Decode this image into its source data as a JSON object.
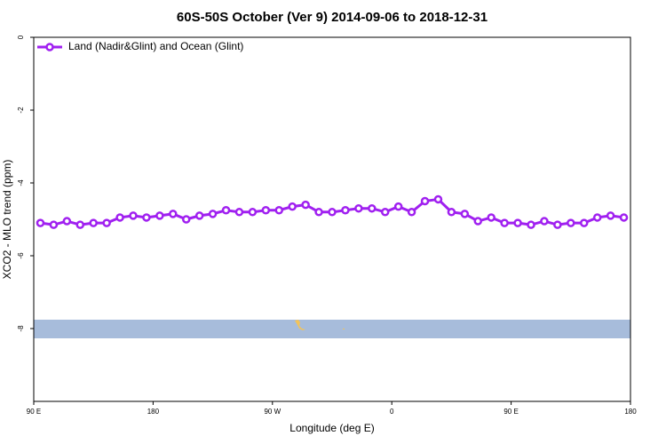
{
  "chart_data": {
    "type": "line",
    "title": "60S-50S October (Ver 9)   2014-09-06 to 2018-12-31",
    "x_label": "Longitude (deg E)",
    "y_label": "XCO2 - MLO trend (ppm)",
    "x": [
      95,
      105,
      115,
      125,
      135,
      145,
      155,
      165,
      175,
      185,
      195,
      205,
      215,
      225,
      235,
      245,
      255,
      265,
      275,
      285,
      295,
      305,
      315,
      325,
      335,
      345,
      355,
      365,
      375,
      385,
      395,
      405,
      415,
      425,
      435,
      445,
      455,
      465,
      475,
      485,
      495,
      505,
      515,
      525,
      535
    ],
    "series": [
      {
        "name": "Land (Nadir&Glint) and Ocean (Glint)",
        "color": "#a020f0",
        "values": [
          -5.1,
          -5.15,
          -5.05,
          -5.15,
          -5.1,
          -5.1,
          -4.95,
          -4.9,
          -4.95,
          -4.9,
          -4.85,
          -5.0,
          -4.9,
          -4.85,
          -4.75,
          -4.8,
          -4.8,
          -4.75,
          -4.75,
          -4.65,
          -4.6,
          -4.8,
          -4.8,
          -4.75,
          -4.7,
          -4.7,
          -4.8,
          -4.65,
          -4.8,
          -4.5,
          -4.45,
          -4.8,
          -4.85,
          -5.05,
          -4.95,
          -5.1,
          -5.1,
          -5.15,
          -5.05,
          -5.15,
          -5.1,
          -5.1,
          -4.95,
          -4.9,
          -4.95
        ]
      }
    ],
    "xlim": [
      90,
      540
    ],
    "xticks": [
      {
        "value": 90,
        "label": "90 E"
      },
      {
        "value": 180,
        "label": "180"
      },
      {
        "value": 270,
        "label": "90 W"
      },
      {
        "value": 360,
        "label": "0"
      },
      {
        "value": 450,
        "label": "90 E"
      },
      {
        "value": 540,
        "label": "180"
      }
    ],
    "ylim": [
      -10,
      0
    ],
    "yticks": [
      0,
      -2,
      -4,
      -6,
      -8
    ],
    "legend": "top-left"
  }
}
